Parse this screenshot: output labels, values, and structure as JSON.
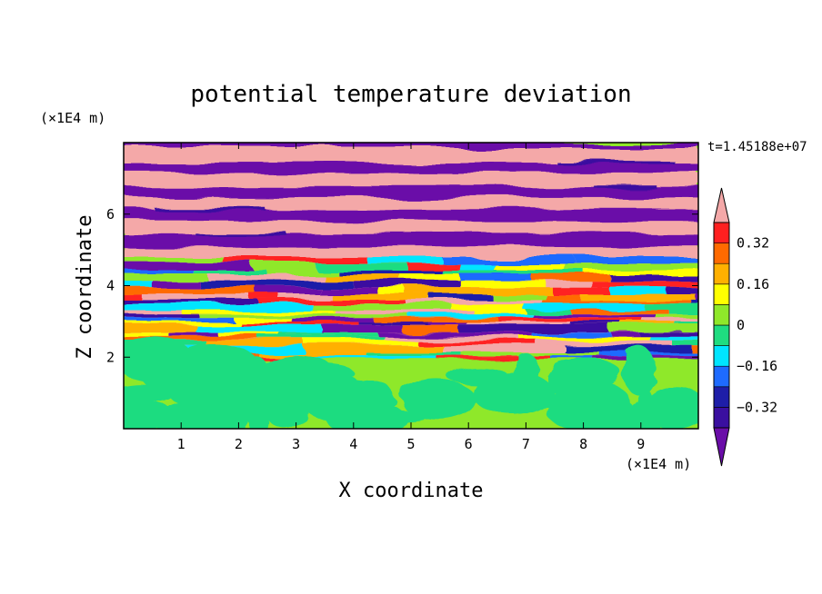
{
  "chart_data": {
    "type": "heatmap",
    "title": "potential temperature deviation",
    "xlabel": "X coordinate",
    "ylabel": "Z coordinate",
    "x_unit": "(×1E4 m)",
    "y_unit": "(×1E4 m)",
    "time_label": "t=1.45188e+07",
    "xlim": [
      0,
      10
    ],
    "ylim": [
      0,
      8
    ],
    "x_ticks": [
      "1",
      "2",
      "3",
      "4",
      "5",
      "6",
      "7",
      "8",
      "9"
    ],
    "y_ticks": [
      "2",
      "4",
      "6"
    ],
    "colorbar": {
      "levels": [
        {
          "color": "#6a0da8",
          "range": "< -0.40"
        },
        {
          "color": "#3a0fa0",
          "range": "-0.40 to -0.32"
        },
        {
          "color": "#1e1ea8",
          "range": "-0.32 to -0.24"
        },
        {
          "color": "#1e6bff",
          "range": "-0.24 to -0.16"
        },
        {
          "color": "#00e5ff",
          "range": "-0.16 to -0.08"
        },
        {
          "color": "#1fdc80",
          "range": "-0.08 to 0"
        },
        {
          "color": "#8fe82a",
          "range": "0 to 0.08"
        },
        {
          "color": "#ffff00",
          "range": "0.08 to 0.16"
        },
        {
          "color": "#ffb000",
          "range": "0.16 to 0.24"
        },
        {
          "color": "#ff6a00",
          "range": "0.24 to 0.32"
        },
        {
          "color": "#ff2020",
          "range": "0.32 to 0.40"
        },
        {
          "color": "#f4a8a8",
          "range": "> 0.40"
        }
      ],
      "tick_labels": [
        {
          "label": "0.32",
          "value": 0.32
        },
        {
          "label": "0.16",
          "value": 0.16
        },
        {
          "label": "0",
          "value": 0
        },
        {
          "label": "−0.16",
          "value": -0.16
        },
        {
          "label": "−0.32",
          "value": -0.32
        }
      ]
    },
    "fields": {
      "z_boundary_layer_top": 1.95,
      "z_turbulent_top": 4.8,
      "upper_layers_pattern": "alternating pink / purple horizontal bands",
      "lower_layer": "green and light-green turbulent region"
    }
  }
}
